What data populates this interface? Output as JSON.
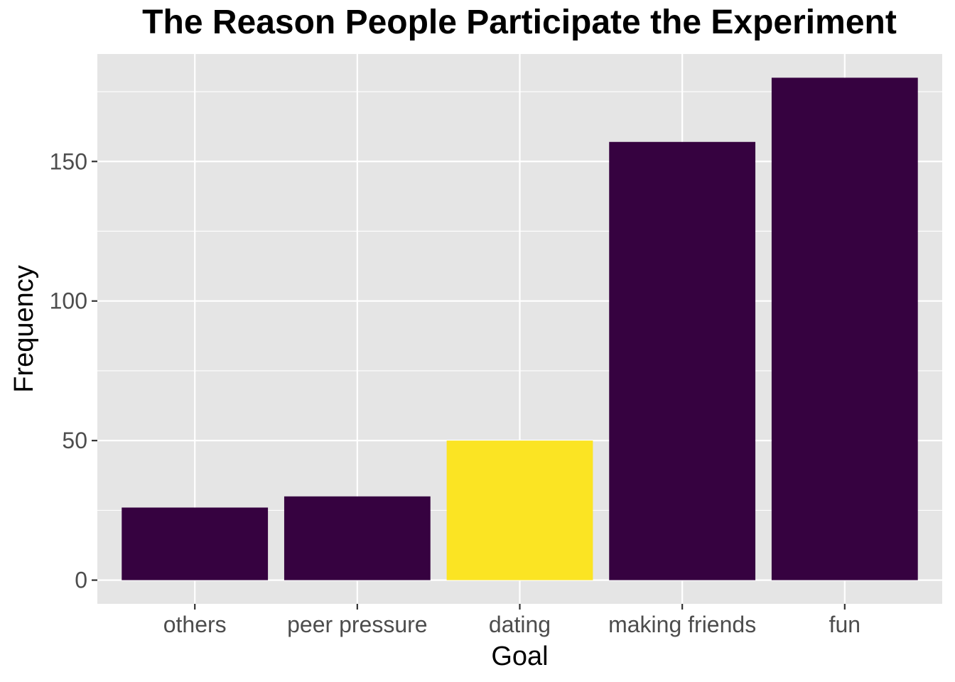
{
  "chart_data": {
    "type": "bar",
    "title": "The Reason People Participate the Experiment",
    "xlabel": "Goal",
    "ylabel": "Frequency",
    "categories": [
      "others",
      "peer pressure",
      "dating",
      "making friends",
      "fun"
    ],
    "values": [
      26,
      30,
      50,
      157,
      180
    ],
    "ylim": [
      -8.5,
      188.5
    ],
    "yticks": [
      0,
      50,
      100,
      150
    ],
    "grid": true,
    "legend": "none",
    "colors": {
      "default_bar": "#360240",
      "highlight_bar": "#fbe423",
      "panel_background": "#e5e5e5",
      "grid": "#ffffff",
      "tick_text": "#4d4d4d",
      "tick_mark": "#333333"
    },
    "highlight_category": "dating"
  }
}
